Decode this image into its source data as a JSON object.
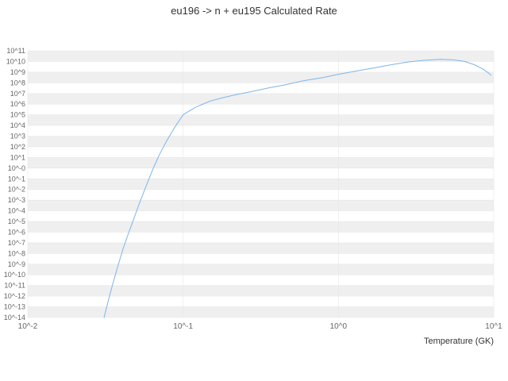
{
  "chart_data": {
    "type": "line",
    "title": "eu196 -> n + eu195 Calculated Rate",
    "xlabel": "Temperature (GK)",
    "ylabel": "",
    "xscale": "log",
    "yscale": "log",
    "xlim_log10": [
      -2,
      1
    ],
    "ylim_log10": [
      -14,
      11
    ],
    "grid": "alternating-horizontal-bands",
    "legend": "none",
    "line_color": "#7cb5ec",
    "band_color": "#efefef",
    "grid_line_color": "#e7e7e7",
    "tick_label_color": "#666666",
    "axis_title_color": "#333333",
    "x_ticks": [
      {
        "log": -2,
        "label": "10^-2"
      },
      {
        "log": -1,
        "label": "10^-1"
      },
      {
        "log": 0,
        "label": "10^0"
      },
      {
        "log": 1,
        "label": "10^1"
      }
    ],
    "y_tick_labels": [
      "10^11",
      "10^10",
      "10^9",
      "10^8",
      "10^7",
      "10^6",
      "10^5",
      "10^4",
      "10^3",
      "10^2",
      "10^1",
      "10^-0",
      "10^-1",
      "10^-2",
      "10^-3",
      "10^-4",
      "10^-5",
      "10^-6",
      "10^-7",
      "10^-8",
      "10^-9",
      "10^-10",
      "10^-11",
      "10^-12",
      "10^-13",
      "10^-14"
    ],
    "series": [
      {
        "name": "Calculated Rate",
        "comment": "points are [temperature_GK, log10(rate)]",
        "points": [
          [
            0.031,
            -14.0
          ],
          [
            0.033,
            -12.4
          ],
          [
            0.035,
            -11.0
          ],
          [
            0.038,
            -9.2
          ],
          [
            0.041,
            -7.6
          ],
          [
            0.044,
            -6.3
          ],
          [
            0.048,
            -4.8
          ],
          [
            0.052,
            -3.4
          ],
          [
            0.057,
            -1.9
          ],
          [
            0.063,
            -0.3
          ],
          [
            0.07,
            1.2
          ],
          [
            0.078,
            2.5
          ],
          [
            0.088,
            3.8
          ],
          [
            0.1,
            5.0
          ],
          [
            0.12,
            5.7
          ],
          [
            0.15,
            6.3
          ],
          [
            0.18,
            6.6
          ],
          [
            0.22,
            6.9
          ],
          [
            0.28,
            7.2
          ],
          [
            0.35,
            7.5
          ],
          [
            0.45,
            7.8
          ],
          [
            0.6,
            8.2
          ],
          [
            0.8,
            8.5
          ],
          [
            1.0,
            8.8
          ],
          [
            1.3,
            9.1
          ],
          [
            1.7,
            9.4
          ],
          [
            2.2,
            9.7
          ],
          [
            2.8,
            9.95
          ],
          [
            3.5,
            10.1
          ],
          [
            4.5,
            10.2
          ],
          [
            5.5,
            10.15
          ],
          [
            6.5,
            10.0
          ],
          [
            7.5,
            9.7
          ],
          [
            8.5,
            9.3
          ],
          [
            9.3,
            8.9
          ],
          [
            9.6,
            8.7
          ]
        ]
      }
    ]
  }
}
